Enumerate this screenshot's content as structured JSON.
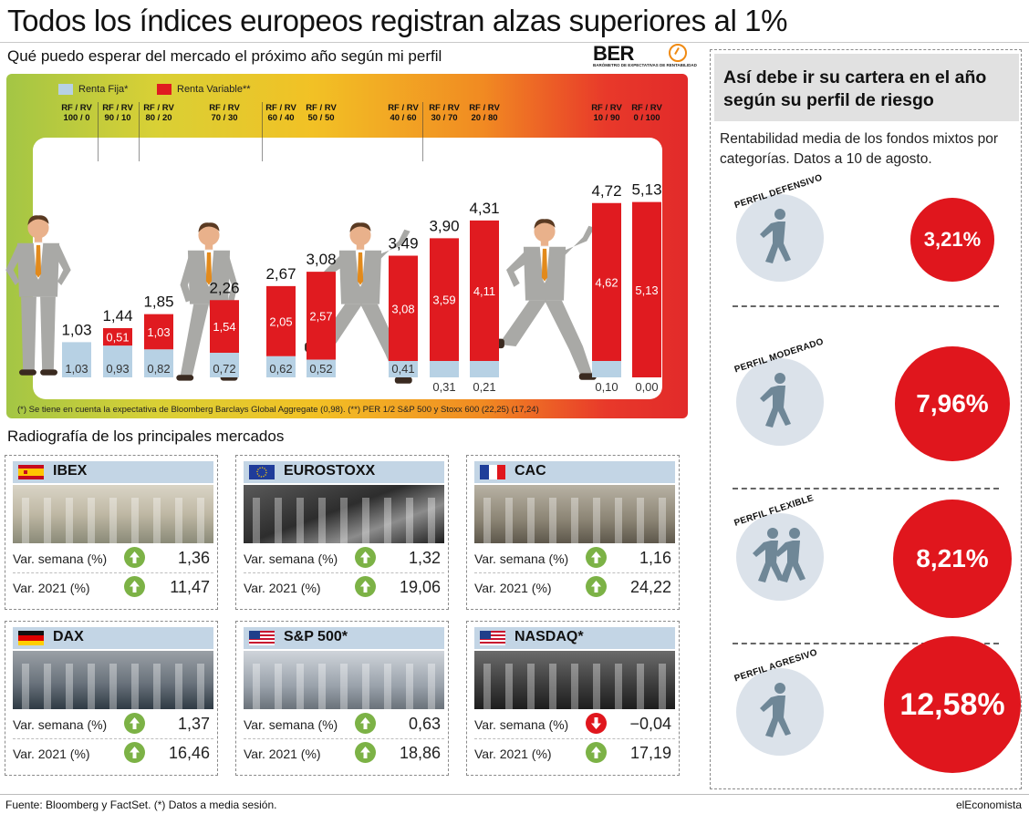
{
  "header": {
    "title": "Todos los índices europeos registran alzas superiores al 1%",
    "subtitle": "Qué puedo esperar del mercado el próximo año según mi perfil",
    "ber_logo": "BER",
    "ber_tagline": "BARÓMETRO DE EXPECTATIVAS DE RENTABILIDAD"
  },
  "colors": {
    "renta_fija": "#b7d1e4",
    "renta_variable": "#e01b20",
    "red_circle": "#e0161d",
    "card_head": "#c3d5e5",
    "up_arrow": "#7cb246",
    "down_arrow": "#e0161d"
  },
  "chart_data": {
    "type": "bar",
    "stacked": true,
    "categories": [
      "RF / RV 100 / 0",
      "RF / RV 90 / 10",
      "RF / RV 80 / 20",
      "RF / RV 70 / 30",
      "RF / RV 60 / 40",
      "RF / RV 50 / 50",
      "RF / RV 40 / 60",
      "RF / RV 30 / 70",
      "RF / RV 20 / 80",
      "RF / RV 10 / 90",
      "RF / RV 0 / 100"
    ],
    "category_labels": [
      [
        "RF / RV",
        "100 / 0"
      ],
      [
        "RF / RV",
        "90 / 10"
      ],
      [
        "RF / RV",
        "80 / 20"
      ],
      [
        "RF / RV",
        "70 / 30"
      ],
      [
        "RF / RV",
        "60 / 40"
      ],
      [
        "RF / RV",
        "50 / 50"
      ],
      [
        "RF / RV",
        "40 / 60"
      ],
      [
        "RF / RV",
        "30 / 70"
      ],
      [
        "RF / RV",
        "20 / 80"
      ],
      [
        "RF / RV",
        "10 / 90"
      ],
      [
        "RF / RV",
        "0 / 100"
      ]
    ],
    "series": [
      {
        "name": "Renta Fija*",
        "values": [
          1.03,
          0.93,
          0.82,
          0.72,
          0.62,
          0.52,
          0.41,
          0.31,
          0.21,
          0.1,
          0.0
        ],
        "labels": [
          "1,03",
          "0,93",
          "0,82",
          "0,72",
          "0,62",
          "0,52",
          "0,41",
          "0,31",
          "0,21",
          "0,10",
          "0,00"
        ]
      },
      {
        "name": "Renta Variable**",
        "values": [
          0,
          0.51,
          1.03,
          1.54,
          2.05,
          2.57,
          3.08,
          3.59,
          4.11,
          4.62,
          5.13
        ],
        "labels": [
          "",
          "0,51",
          "1,03",
          "1,54",
          "2,05",
          "2,57",
          "3,08",
          "3,59",
          "4,11",
          "4,62",
          "5,13"
        ]
      }
    ],
    "totals": [
      1.03,
      1.44,
      1.85,
      2.26,
      2.67,
      3.08,
      3.49,
      3.9,
      4.31,
      4.72,
      5.13
    ],
    "total_labels": [
      "1,03",
      "1,44",
      "1,85",
      "2,26",
      "2,67",
      "3,08",
      "3,49",
      "3,90",
      "4,31",
      "4,72",
      "5,13"
    ],
    "ylim": [
      0,
      5.4
    ],
    "legend": [
      "Renta Fija*",
      "Renta Variable**"
    ],
    "legend_position": "top-left",
    "footnote": "(*) Se tiene en cuenta la expectativa de Bloomberg Barclays Global Aggregate (0,98). (**) PER 1/2 S&P 500 y Stoxx 600 (22,25) (17,24)"
  },
  "markets": {
    "section_title": "Radiografía de los principales mercados",
    "row_labels": {
      "week": "Var. semana (%)",
      "year": "Var. 2021 (%)"
    },
    "items": [
      {
        "name": "IBEX",
        "flag": "spain-flag",
        "week": "1,36",
        "week_dir": "up",
        "year": "11,47",
        "year_dir": "up"
      },
      {
        "name": "EUROSTOXX",
        "flag": "eu-flag",
        "week": "1,32",
        "week_dir": "up",
        "year": "19,06",
        "year_dir": "up"
      },
      {
        "name": "CAC",
        "flag": "france-flag",
        "week": "1,16",
        "week_dir": "up",
        "year": "24,22",
        "year_dir": "up"
      },
      {
        "name": "DAX",
        "flag": "germany-flag",
        "week": "1,37",
        "week_dir": "up",
        "year": "16,46",
        "year_dir": "up"
      },
      {
        "name": "S&P 500*",
        "flag": "usa-flag",
        "week": "0,63",
        "week_dir": "up",
        "year": "18,86",
        "year_dir": "up"
      },
      {
        "name": "NASDAQ*",
        "flag": "usa-flag",
        "week": "−0,04",
        "week_dir": "down",
        "year": "17,19",
        "year_dir": "up"
      }
    ]
  },
  "portfolio": {
    "title": "Así debe ir su cartera en el año según su perfil de riesgo",
    "description": "Rentabilidad media de los fondos mixtos por categorías. Datos a 10 de agosto.",
    "profiles": [
      {
        "label": "PERFIL DEFENSIVO",
        "value": "3,21%",
        "icon": "runner-icon"
      },
      {
        "label": "PERFIL MODERADO",
        "value": "7,96%",
        "icon": "runner-icon"
      },
      {
        "label": "PERFIL FLEXIBLE",
        "value": "8,21%",
        "icon": "two-runners-icon"
      },
      {
        "label": "PERFIL AGRESIVO",
        "value": "12,58%",
        "icon": "runner-icon"
      }
    ]
  },
  "footer": {
    "source": "Fuente: Bloomberg y FactSet. (*) Datos a media sesión.",
    "brand": "elEconomista"
  }
}
